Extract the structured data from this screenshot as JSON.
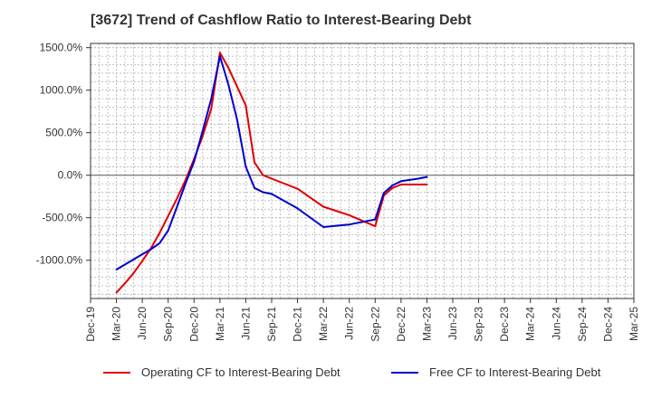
{
  "chart_data": {
    "type": "line",
    "title": "[3672]  Trend of Cashflow Ratio to Interest-Bearing Debt",
    "xlabel": "",
    "ylabel": "",
    "x_ticks": [
      "Dec-19",
      "Mar-20",
      "Jun-20",
      "Sep-20",
      "Dec-20",
      "Mar-21",
      "Jun-21",
      "Sep-21",
      "Dec-21",
      "Mar-22",
      "Jun-22",
      "Sep-22",
      "Dec-22",
      "Mar-23",
      "Jun-23",
      "Sep-23",
      "Dec-23",
      "Mar-24",
      "Jun-24",
      "Sep-24",
      "Dec-24",
      "Mar-25"
    ],
    "y_ticks": [
      1500,
      1000,
      500,
      0,
      -500,
      -1000
    ],
    "y_tick_labels": [
      "1500.0%",
      "1000.0%",
      "500.0%",
      "0.0%",
      "-500.0%",
      "-1000.0%"
    ],
    "ylim": [
      -1450,
      1550
    ],
    "grid": true,
    "legend_position": "bottom",
    "series": [
      {
        "name": "Operating CF to Interest-Bearing Debt",
        "color": "#e00000",
        "points": [
          [
            "Mar-20",
            -1380
          ],
          [
            "Apr-20",
            -1270
          ],
          [
            "May-20",
            -1150
          ],
          [
            "Jun-20",
            -1010
          ],
          [
            "Jul-20",
            -860
          ],
          [
            "Aug-20",
            -680
          ],
          [
            "Sep-20",
            -480
          ],
          [
            "Oct-20",
            -280
          ],
          [
            "Nov-20",
            -60
          ],
          [
            "Dec-20",
            190
          ],
          [
            "Jan-21",
            460
          ],
          [
            "Feb-21",
            780
          ],
          [
            "Mar-21",
            1440
          ],
          [
            "Apr-21",
            1260
          ],
          [
            "May-21",
            1040
          ],
          [
            "Jun-21",
            820
          ],
          [
            "Jul-21",
            150
          ],
          [
            "Aug-21",
            0
          ],
          [
            "Sep-21",
            -40
          ],
          [
            "Dec-21",
            -160
          ],
          [
            "Mar-22",
            -370
          ],
          [
            "Jun-22",
            -470
          ],
          [
            "Sep-22",
            -600
          ],
          [
            "Oct-22",
            -240
          ],
          [
            "Nov-22",
            -150
          ],
          [
            "Dec-22",
            -110
          ],
          [
            "Mar-23",
            -110
          ]
        ]
      },
      {
        "name": "Free CF to Interest-Bearing Debt",
        "color": "#0000d0",
        "points": [
          [
            "Mar-20",
            -1110
          ],
          [
            "Jun-20",
            -930
          ],
          [
            "Jul-20",
            -870
          ],
          [
            "Aug-20",
            -800
          ],
          [
            "Sep-20",
            -650
          ],
          [
            "Oct-20",
            -380
          ],
          [
            "Nov-20",
            -100
          ],
          [
            "Dec-20",
            160
          ],
          [
            "Jan-21",
            520
          ],
          [
            "Feb-21",
            900
          ],
          [
            "Mar-21",
            1400
          ],
          [
            "Apr-21",
            1060
          ],
          [
            "May-21",
            650
          ],
          [
            "Jun-21",
            100
          ],
          [
            "Jul-21",
            -150
          ],
          [
            "Aug-21",
            -200
          ],
          [
            "Sep-21",
            -220
          ],
          [
            "Dec-21",
            -390
          ],
          [
            "Mar-22",
            -610
          ],
          [
            "Jun-22",
            -580
          ],
          [
            "Sep-22",
            -520
          ],
          [
            "Oct-22",
            -210
          ],
          [
            "Nov-22",
            -120
          ],
          [
            "Dec-22",
            -70
          ],
          [
            "Jan-23",
            -55
          ],
          [
            "Feb-23",
            -40
          ],
          [
            "Mar-23",
            -20
          ]
        ]
      }
    ]
  }
}
